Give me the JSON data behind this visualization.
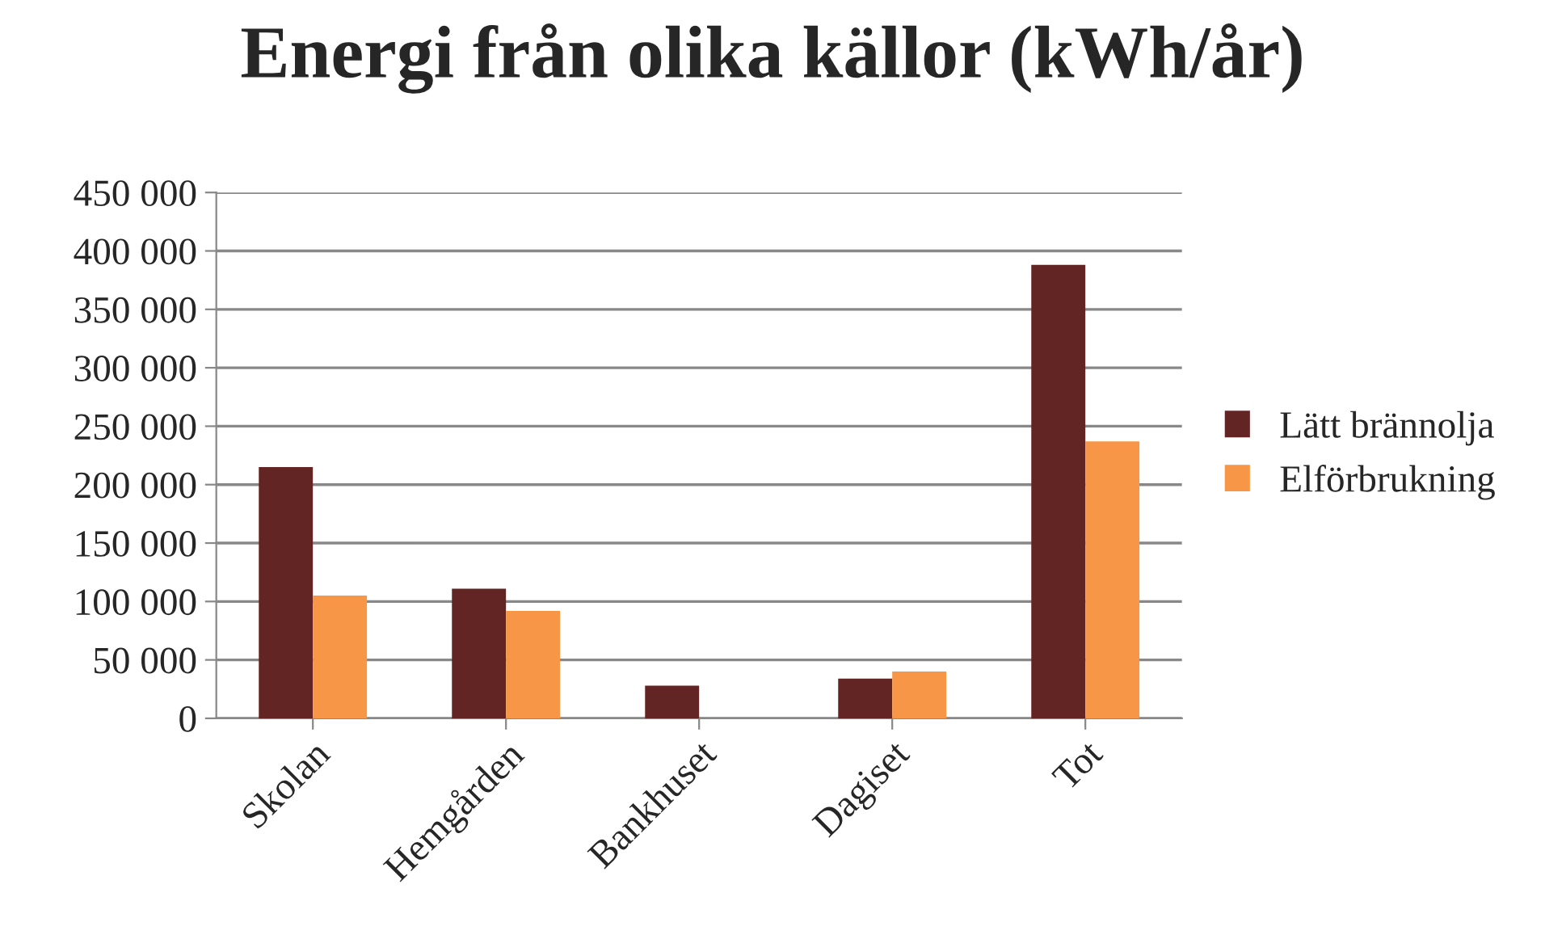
{
  "chart_data": {
    "type": "bar",
    "title": "Energi från olika källor (kWh/år)",
    "categories": [
      "Skolan",
      "Hemgården",
      "Bankhuset",
      "Dagiset",
      "Tot"
    ],
    "series": [
      {
        "name": "Lätt brännolja",
        "color": "#632523",
        "values": [
          215000,
          111000,
          28000,
          34000,
          388000
        ]
      },
      {
        "name": "Elförbrukning",
        "color": "#f79646",
        "values": [
          105000,
          92000,
          null,
          40000,
          237000
        ]
      }
    ],
    "ylim": [
      0,
      450000
    ],
    "yticks": [
      {
        "value": 0,
        "label": "0"
      },
      {
        "value": 50000,
        "label": "50 000"
      },
      {
        "value": 100000,
        "label": "100 000"
      },
      {
        "value": 150000,
        "label": "150 000"
      },
      {
        "value": 200000,
        "label": "200 000"
      },
      {
        "value": 250000,
        "label": "250 000"
      },
      {
        "value": 300000,
        "label": "300 000"
      },
      {
        "value": 350000,
        "label": "350 000"
      },
      {
        "value": 400000,
        "label": "400 000"
      },
      {
        "value": 450000,
        "label": "450 000"
      }
    ],
    "grid": "y",
    "legend": "right"
  }
}
